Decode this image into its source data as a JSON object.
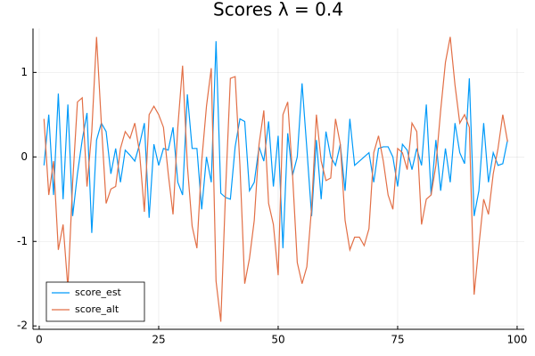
{
  "chart_data": {
    "type": "line",
    "title": "Scores λ = 0.4",
    "x": [
      1,
      2,
      3,
      4,
      5,
      6,
      7,
      8,
      9,
      10,
      11,
      12,
      13,
      14,
      15,
      16,
      17,
      18,
      19,
      20,
      21,
      22,
      23,
      24,
      25,
      26,
      27,
      28,
      29,
      30,
      31,
      32,
      33,
      34,
      35,
      36,
      37,
      38,
      39,
      40,
      41,
      42,
      43,
      44,
      45,
      46,
      47,
      48,
      49,
      50,
      51,
      52,
      53,
      54,
      55,
      56,
      57,
      58,
      59,
      60,
      61,
      62,
      63,
      64,
      65,
      66,
      67,
      68,
      69,
      70,
      71,
      72,
      73,
      74,
      75,
      76,
      77,
      78,
      79,
      80,
      81,
      82,
      83,
      84,
      85,
      86,
      87,
      88,
      89,
      90,
      91,
      92,
      93,
      94,
      95,
      96,
      97,
      98
    ],
    "series": [
      {
        "name": "score_est",
        "color": "#009af9",
        "values": [
          -0.1,
          0.5,
          -0.45,
          0.75,
          -0.5,
          0.62,
          -0.7,
          -0.2,
          0.2,
          0.52,
          -0.9,
          0.2,
          0.4,
          0.3,
          -0.2,
          0.1,
          -0.3,
          0.08,
          0.02,
          -0.05,
          0.15,
          0.4,
          -0.72,
          0.15,
          -0.1,
          0.1,
          0.08,
          0.35,
          -0.3,
          -0.45,
          0.74,
          0.1,
          0.1,
          -0.62,
          0.0,
          -0.3,
          1.37,
          -0.43,
          -0.48,
          -0.5,
          0.12,
          0.45,
          0.42,
          -0.4,
          -0.3,
          0.12,
          -0.05,
          0.42,
          -0.35,
          0.25,
          -1.08,
          0.28,
          -0.22,
          0.0,
          0.87,
          0.1,
          -0.7,
          0.2,
          -0.5,
          0.3,
          0.0,
          -0.1,
          0.15,
          -0.4,
          0.45,
          -0.1,
          -0.05,
          0.0,
          0.05,
          -0.3,
          0.1,
          0.12,
          0.12,
          0.0,
          -0.35,
          0.15,
          0.08,
          -0.15,
          0.1,
          -0.1,
          0.62,
          -0.45,
          0.2,
          -0.4,
          0.1,
          -0.3,
          0.4,
          0.05,
          -0.08,
          0.93,
          -0.7,
          -0.4,
          0.4,
          -0.3,
          0.05,
          -0.1,
          -0.08,
          0.2
        ]
      },
      {
        "name": "score_alt",
        "color": "#e26f46",
        "values": [
          0.45,
          -0.45,
          -0.05,
          -1.1,
          -0.8,
          -1.55,
          -0.3,
          0.65,
          0.7,
          -0.35,
          0.3,
          1.42,
          0.4,
          -0.55,
          -0.38,
          -0.35,
          0.1,
          0.3,
          0.22,
          0.4,
          0.05,
          -0.65,
          0.5,
          0.6,
          0.5,
          0.35,
          -0.2,
          -0.68,
          0.35,
          1.08,
          -0.1,
          -0.82,
          -1.08,
          -0.05,
          0.6,
          1.05,
          -1.47,
          -1.95,
          -0.4,
          0.93,
          0.95,
          -0.1,
          -1.5,
          -1.2,
          -0.75,
          0.15,
          0.55,
          -0.55,
          -0.8,
          -1.4,
          0.5,
          0.65,
          -0.2,
          -1.25,
          -1.5,
          -1.3,
          -0.6,
          0.5,
          -0.05,
          -0.28,
          -0.25,
          0.45,
          0.15,
          -0.75,
          -1.1,
          -0.95,
          -0.95,
          -1.05,
          -0.85,
          0.05,
          0.25,
          -0.05,
          -0.45,
          -0.62,
          0.1,
          0.05,
          -0.15,
          0.4,
          0.3,
          -0.8,
          -0.5,
          -0.45,
          -0.1,
          0.55,
          1.12,
          1.42,
          0.85,
          0.4,
          0.5,
          0.35,
          -1.63,
          -1.05,
          -0.5,
          -0.68,
          -0.2,
          0.1,
          0.5,
          0.18
        ]
      }
    ],
    "xlim": [
      -1.3,
      101.5
    ],
    "ylim": [
      -2.04,
      1.52
    ],
    "xticks": [
      0,
      25,
      50,
      75,
      100
    ],
    "yticks": [
      -2,
      -1,
      0,
      1
    ],
    "grid": true,
    "legend": "bottom-left"
  }
}
